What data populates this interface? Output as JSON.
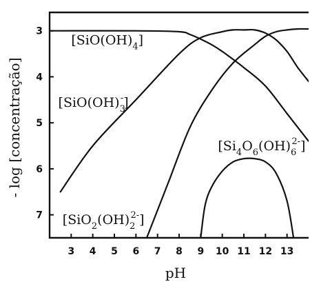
{
  "chart_data": {
    "type": "line",
    "title": "",
    "xlabel": "pH",
    "ylabel": "- log [concentração]",
    "xlim": [
      2.0,
      14.0
    ],
    "ylim": [
      2.6,
      7.5
    ],
    "y_inverted": true,
    "grid": false,
    "x_ticks": [
      "3",
      "4",
      "5",
      "6",
      "7",
      "8",
      "9",
      "10",
      "11",
      "12",
      "13"
    ],
    "y_ticks": [
      "3",
      "4",
      "5",
      "6",
      "7"
    ],
    "series": [
      {
        "name": "SiO(OH)4",
        "x": [
          2.0,
          6.0,
          8.0,
          8.5,
          9.0,
          9.5,
          10.0,
          11.0,
          12.0,
          13.0,
          14.0
        ],
        "y": [
          3.0,
          3.0,
          3.02,
          3.08,
          3.18,
          3.3,
          3.45,
          3.8,
          4.2,
          4.8,
          5.4
        ]
      },
      {
        "name": "SiO(OH)3-",
        "x": [
          2.5,
          4.0,
          6.0,
          8.0,
          9.0,
          10.0,
          10.5,
          11.0,
          11.5,
          12.0,
          12.5,
          13.0,
          13.5,
          14.0
        ],
        "y": [
          6.5,
          5.5,
          4.5,
          3.5,
          3.15,
          3.02,
          2.98,
          2.98,
          2.98,
          3.05,
          3.2,
          3.45,
          3.8,
          4.1
        ]
      },
      {
        "name": "SiO2(OH)2 2-",
        "x": [
          6.5,
          7.5,
          8.5,
          9.5,
          10.5,
          11.5,
          12.0,
          12.5,
          13.0,
          13.5,
          14.0
        ],
        "y": [
          7.5,
          6.3,
          5.1,
          4.3,
          3.7,
          3.3,
          3.12,
          3.02,
          2.98,
          2.96,
          2.96
        ]
      },
      {
        "name": "Si4O6(OH)6 2-",
        "x": [
          9.0,
          9.2,
          9.5,
          10.0,
          10.5,
          11.0,
          11.5,
          12.0,
          12.5,
          13.0,
          13.3
        ],
        "y": [
          7.5,
          6.8,
          6.4,
          6.05,
          5.85,
          5.78,
          5.78,
          5.85,
          6.1,
          6.7,
          7.5
        ]
      }
    ],
    "labels": [
      {
        "text": "[SiO(OH)",
        "sub": "4",
        "sup": "",
        "tail": "]",
        "at_x": 3.0,
        "at_y": 3.3
      },
      {
        "text": "[SiO(OH)",
        "sub": "3",
        "sup": "-",
        "tail": "]",
        "at_x": 2.4,
        "at_y": 4.65
      },
      {
        "text": "[Si",
        "sub": "4",
        "mid": "O",
        "sub2": "6",
        "tail2": "(OH)",
        "sub3": "6",
        "sup": "2-",
        "tail": "]",
        "at_x": 9.8,
        "at_y": 5.6
      },
      {
        "text": "[SiO",
        "sub": "2",
        "mid": "(OH)",
        "sub2": "2",
        "sup": "2-",
        "tail": "]",
        "at_x": 2.6,
        "at_y": 7.2
      }
    ]
  }
}
